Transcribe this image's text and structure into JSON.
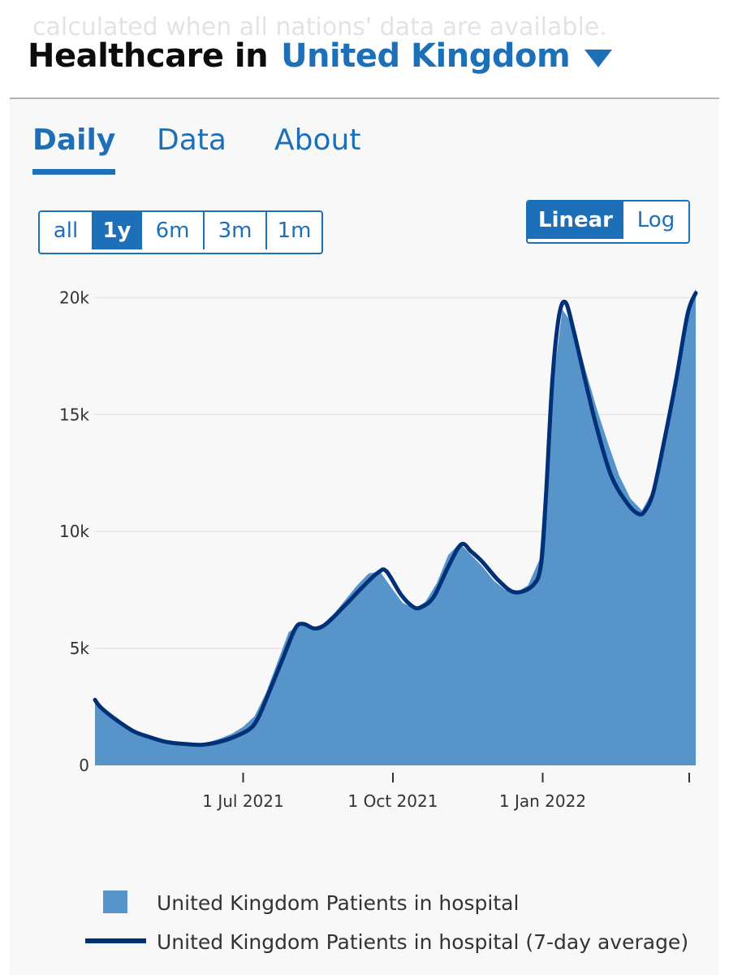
{
  "faded_text": "calculated when all nations' data are available.",
  "header": {
    "prefix": "Healthcare in",
    "area": "United Kingdom",
    "caret_icon": "caret-down-icon"
  },
  "tabs": [
    {
      "label": "Daily",
      "active": true
    },
    {
      "label": "Data",
      "active": false
    },
    {
      "label": "About",
      "active": false
    }
  ],
  "range_buttons": [
    {
      "label": "all",
      "selected": false
    },
    {
      "label": "1y",
      "selected": true
    },
    {
      "label": "6m",
      "selected": false
    },
    {
      "label": "3m",
      "selected": false
    },
    {
      "label": "1m",
      "selected": false
    }
  ],
  "scale_buttons": [
    {
      "label": "Linear",
      "selected": true
    },
    {
      "label": "Log",
      "selected": false
    }
  ],
  "colors": {
    "accent": "#1d70b8",
    "bars": "#5694ca",
    "line": "#003078"
  },
  "chart_data": {
    "type": "area",
    "x_axis": "date",
    "x_range": [
      "2021-04-01",
      "2022-04-05"
    ],
    "x_ticks": [
      {
        "date": "2021-07-01",
        "label": "1 Jul 2021"
      },
      {
        "date": "2021-10-01",
        "label": "1 Oct 2021"
      },
      {
        "date": "2022-01-01",
        "label": "1 Jan 2022"
      },
      {
        "date": "2022-04-01",
        "label": ""
      }
    ],
    "y_ticks": [
      {
        "value": 0,
        "label": "0"
      },
      {
        "value": 5000,
        "label": "5k"
      },
      {
        "value": 10000,
        "label": "10k"
      },
      {
        "value": 15000,
        "label": "15k"
      },
      {
        "value": 20000,
        "label": "20k"
      }
    ],
    "ylim": [
      0,
      20500
    ],
    "grid": "horizontal",
    "legend_position": "bottom",
    "series": [
      {
        "name": "United Kingdom Patients in hospital",
        "style": "bars",
        "points": [
          [
            "2021-04-01",
            2800
          ],
          [
            "2021-04-08",
            2300
          ],
          [
            "2021-04-15",
            1950
          ],
          [
            "2021-04-22",
            1650
          ],
          [
            "2021-04-29",
            1400
          ],
          [
            "2021-05-06",
            1200
          ],
          [
            "2021-05-13",
            1050
          ],
          [
            "2021-05-20",
            950
          ],
          [
            "2021-05-27",
            880
          ],
          [
            "2021-06-03",
            900
          ],
          [
            "2021-06-10",
            1000
          ],
          [
            "2021-06-17",
            1150
          ],
          [
            "2021-06-24",
            1350
          ],
          [
            "2021-07-01",
            1650
          ],
          [
            "2021-07-08",
            2100
          ],
          [
            "2021-07-15",
            3100
          ],
          [
            "2021-07-22",
            4400
          ],
          [
            "2021-07-29",
            5700
          ],
          [
            "2021-08-05",
            6050
          ],
          [
            "2021-08-12",
            5850
          ],
          [
            "2021-08-19",
            6050
          ],
          [
            "2021-08-26",
            6500
          ],
          [
            "2021-09-02",
            7100
          ],
          [
            "2021-09-09",
            7700
          ],
          [
            "2021-09-16",
            8200
          ],
          [
            "2021-09-23",
            8300
          ],
          [
            "2021-09-30",
            7600
          ],
          [
            "2021-10-07",
            6950
          ],
          [
            "2021-10-14",
            6700
          ],
          [
            "2021-10-21",
            7000
          ],
          [
            "2021-10-28",
            7800
          ],
          [
            "2021-11-04",
            9000
          ],
          [
            "2021-11-11",
            9500
          ],
          [
            "2021-11-18",
            9000
          ],
          [
            "2021-11-25",
            8500
          ],
          [
            "2021-12-02",
            7900
          ],
          [
            "2021-12-09",
            7500
          ],
          [
            "2021-12-16",
            7400
          ],
          [
            "2021-12-23",
            7700
          ],
          [
            "2021-12-30",
            8800
          ],
          [
            "2022-01-06",
            15500
          ],
          [
            "2022-01-13",
            19500
          ],
          [
            "2022-01-20",
            18800
          ],
          [
            "2022-01-27",
            17000
          ],
          [
            "2022-02-03",
            15300
          ],
          [
            "2022-02-10",
            13800
          ],
          [
            "2022-02-17",
            12400
          ],
          [
            "2022-02-24",
            11400
          ],
          [
            "2022-03-03",
            10900
          ],
          [
            "2022-03-10",
            11800
          ],
          [
            "2022-03-17",
            14300
          ],
          [
            "2022-03-24",
            16900
          ],
          [
            "2022-03-31",
            19300
          ],
          [
            "2022-04-05",
            20400
          ]
        ]
      },
      {
        "name": "United Kingdom Patients in hospital (7-day average)",
        "style": "line",
        "points": [
          [
            "2021-04-01",
            2800
          ],
          [
            "2021-04-05",
            2450
          ],
          [
            "2021-04-15",
            1900
          ],
          [
            "2021-04-25",
            1450
          ],
          [
            "2021-05-05",
            1200
          ],
          [
            "2021-05-15",
            1000
          ],
          [
            "2021-05-25",
            920
          ],
          [
            "2021-06-05",
            880
          ],
          [
            "2021-06-15",
            980
          ],
          [
            "2021-06-25",
            1200
          ],
          [
            "2021-07-05",
            1550
          ],
          [
            "2021-07-10",
            2000
          ],
          [
            "2021-07-15",
            2800
          ],
          [
            "2021-07-25",
            4500
          ],
          [
            "2021-08-02",
            5850
          ],
          [
            "2021-08-07",
            6050
          ],
          [
            "2021-08-14",
            5850
          ],
          [
            "2021-08-21",
            6050
          ],
          [
            "2021-09-01",
            6800
          ],
          [
            "2021-09-12",
            7600
          ],
          [
            "2021-09-22",
            8250
          ],
          [
            "2021-09-27",
            8300
          ],
          [
            "2021-10-06",
            7300
          ],
          [
            "2021-10-13",
            6800
          ],
          [
            "2021-10-18",
            6750
          ],
          [
            "2021-10-26",
            7200
          ],
          [
            "2021-11-04",
            8500
          ],
          [
            "2021-11-12",
            9450
          ],
          [
            "2021-11-18",
            9150
          ],
          [
            "2021-11-25",
            8700
          ],
          [
            "2021-12-05",
            7900
          ],
          [
            "2021-12-15",
            7400
          ],
          [
            "2021-12-26",
            7700
          ],
          [
            "2021-12-31",
            8600
          ],
          [
            "2022-01-03",
            11500
          ],
          [
            "2022-01-07",
            16500
          ],
          [
            "2022-01-11",
            19200
          ],
          [
            "2022-01-15",
            19800
          ],
          [
            "2022-01-20",
            18600
          ],
          [
            "2022-01-27",
            16500
          ],
          [
            "2022-02-03",
            14500
          ],
          [
            "2022-02-12",
            12400
          ],
          [
            "2022-02-22",
            11200
          ],
          [
            "2022-03-01",
            10750
          ],
          [
            "2022-03-05",
            10900
          ],
          [
            "2022-03-10",
            11700
          ],
          [
            "2022-03-17",
            14000
          ],
          [
            "2022-03-24",
            16500
          ],
          [
            "2022-03-31",
            19300
          ],
          [
            "2022-04-05",
            20200
          ]
        ]
      }
    ]
  }
}
